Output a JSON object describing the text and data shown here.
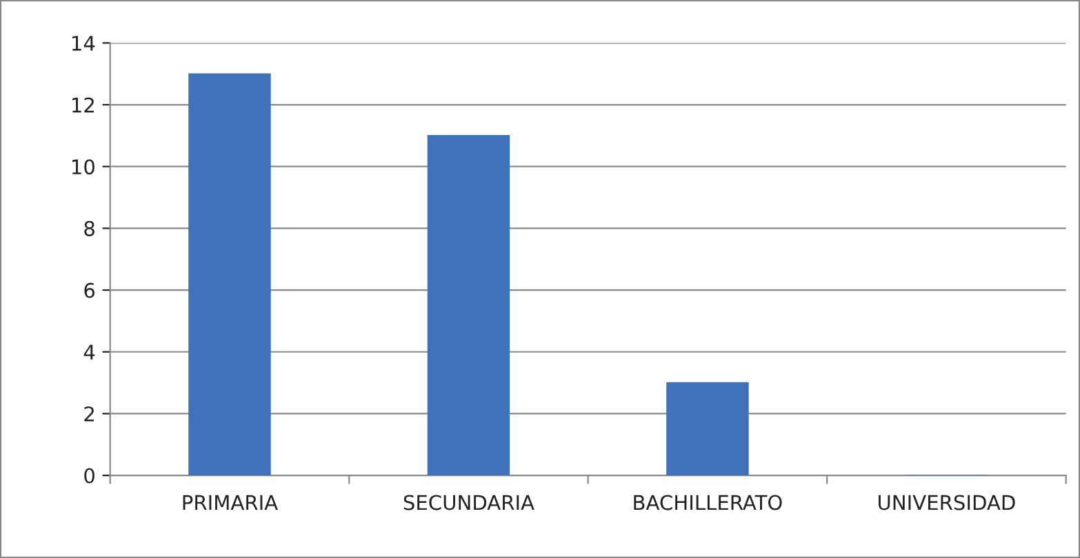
{
  "chart_data": {
    "type": "bar",
    "categories": [
      "PRIMARIA",
      "SECUNDARIA",
      "BACHILLERATO",
      "UNIVERSIDAD"
    ],
    "values": [
      13,
      11,
      3,
      0
    ],
    "color": "#3f72b8",
    "ylim": [
      0,
      14
    ],
    "yticks": [
      0,
      2,
      4,
      6,
      8,
      10,
      12,
      14
    ],
    "grid": "y",
    "legend": false
  }
}
